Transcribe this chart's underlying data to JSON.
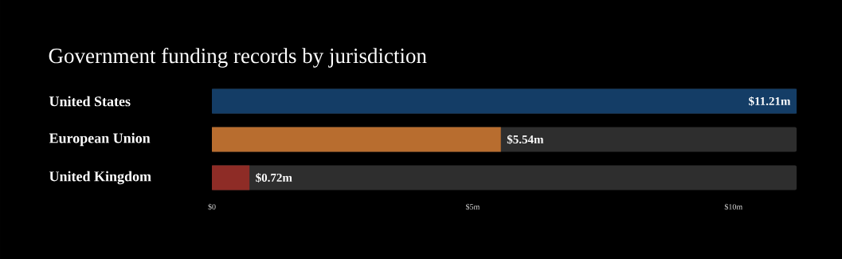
{
  "chart_data": {
    "type": "bar",
    "orientation": "horizontal",
    "title": "Government funding records by jurisdiction",
    "categories": [
      "United States",
      "European Union",
      "United Kingdom"
    ],
    "values": [
      11.21,
      5.54,
      0.72
    ],
    "colors": [
      "#143d66",
      "#b86d2f",
      "#8e2c26"
    ],
    "value_labels": [
      "$11.21m",
      "$5.54m",
      "$0.72m"
    ],
    "xlim": [
      0,
      11.21
    ],
    "xticks": [
      {
        "value": 0,
        "label": "$0"
      },
      {
        "value": 5,
        "label": "$5m"
      },
      {
        "value": 10,
        "label": "$10m"
      }
    ]
  }
}
